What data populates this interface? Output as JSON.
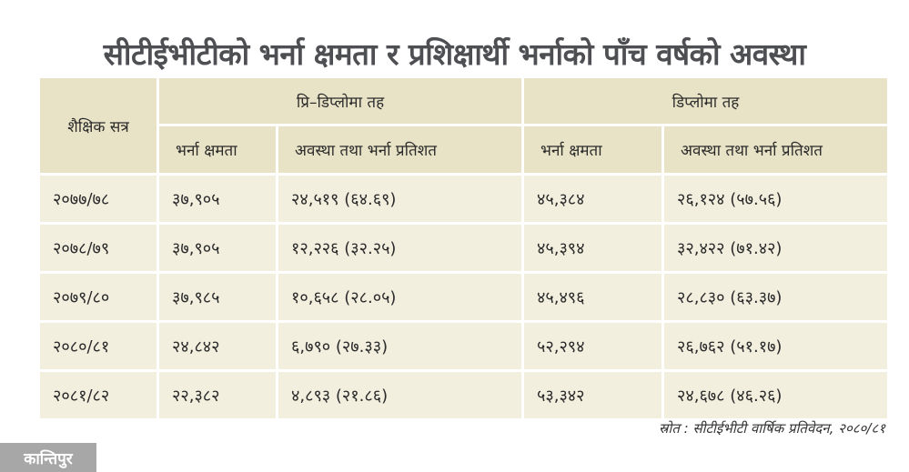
{
  "title": "सीटीईभीटीको भर्ना क्षमता र प्रशिक्षार्थी भर्नाको पाँच वर्षको अवस्था",
  "table": {
    "col_session": "शैक्षिक सत्र",
    "group_pre_diploma": "प्रि–डिप्लोमा तह",
    "group_diploma": "डिप्लोमा तह",
    "sub_capacity": "भर्ना क्षमता",
    "sub_status": "अवस्था तथा भर्ना प्रतिशत",
    "rows": [
      {
        "session": "२०७७/७८",
        "pre_capacity": "३७,९०५",
        "pre_status": "२४,५१९ (६४.६९)",
        "dip_capacity": "४५,३८४",
        "dip_status": "२६,१२४ (५७.५६)"
      },
      {
        "session": "२०७८/७९",
        "pre_capacity": "३७,९०५",
        "pre_status": "१२,२२६ (३२.२५)",
        "dip_capacity": "४५,३९४",
        "dip_status": "३२,४२२ (७१.४२)"
      },
      {
        "session": "२०७९/८०",
        "pre_capacity": "३७,९८५",
        "pre_status": "१०,६५८ (२८.०५)",
        "dip_capacity": "४५,४९६",
        "dip_status": "२८,८३० (६३.३७)"
      },
      {
        "session": "२०८०/८१",
        "pre_capacity": "२४,८४२",
        "pre_status": "६,७९० (२७.३३)",
        "dip_capacity": "५२,२९४",
        "dip_status": "२६,७६२ (५१.१७)"
      },
      {
        "session": "२०८१/८२",
        "pre_capacity": "२२,३८२",
        "pre_status": "४,८९३ (२१.८६)",
        "dip_capacity": "५३,३४२",
        "dip_status": "२४,६७८ (४६.२६)"
      }
    ]
  },
  "source": "स्रोत : सीटीईभीटी वार्षिक प्रतिवेदन, २०८०/८१",
  "logo": "कान्तिपुर"
}
